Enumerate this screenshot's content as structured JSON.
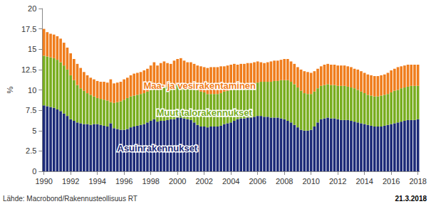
{
  "chart_data": {
    "type": "bar",
    "stacked": true,
    "grid": false,
    "ylabel": "%",
    "ylim": [
      0,
      20
    ],
    "yticks": [
      0,
      2.5,
      5,
      7.5,
      10,
      12.5,
      15,
      17.5,
      20
    ],
    "categories": [
      "1990",
      null,
      null,
      null,
      null,
      null,
      null,
      null,
      "1992",
      null,
      null,
      null,
      null,
      null,
      null,
      null,
      "1994",
      null,
      null,
      null,
      null,
      null,
      null,
      null,
      "1996",
      null,
      null,
      null,
      null,
      null,
      null,
      null,
      "1998",
      null,
      null,
      null,
      null,
      null,
      null,
      null,
      "2000",
      null,
      null,
      null,
      null,
      null,
      null,
      null,
      "2002",
      null,
      null,
      null,
      null,
      null,
      null,
      null,
      "2004",
      null,
      null,
      null,
      null,
      null,
      null,
      null,
      "2006",
      null,
      null,
      null,
      null,
      null,
      null,
      null,
      "2008",
      null,
      null,
      null,
      null,
      null,
      null,
      null,
      "2010",
      null,
      null,
      null,
      null,
      null,
      null,
      null,
      "2012",
      null,
      null,
      null,
      null,
      null,
      null,
      null,
      "2014",
      null,
      null,
      null,
      null,
      null,
      null,
      null,
      "2016",
      null,
      null,
      null,
      null,
      null,
      null,
      null,
      "2018"
    ],
    "series": [
      {
        "name": "Asuinrakennukset",
        "color": "#1c2a78",
        "values": [
          8.1,
          8.0,
          7.9,
          7.8,
          7.6,
          7.4,
          7.1,
          6.8,
          6.4,
          6.2,
          6.0,
          5.9,
          5.8,
          5.8,
          5.7,
          5.8,
          5.8,
          5.7,
          5.6,
          5.5,
          5.9,
          5.3,
          5.2,
          5.1,
          5.1,
          5.2,
          5.4,
          5.5,
          5.6,
          5.7,
          5.8,
          6.0,
          6.2,
          6.4,
          6.1,
          6.2,
          6.2,
          6.3,
          6.4,
          6.4,
          6.6,
          6.6,
          6.5,
          6.4,
          6.3,
          6.0,
          5.7,
          5.5,
          5.5,
          5.4,
          5.5,
          5.5,
          5.5,
          5.6,
          5.8,
          5.9,
          6.0,
          6.2,
          6.4,
          6.5,
          6.5,
          6.6,
          6.6,
          6.7,
          6.8,
          6.8,
          6.7,
          6.7,
          6.6,
          6.6,
          6.6,
          6.5,
          6.4,
          6.2,
          6.0,
          5.7,
          5.4,
          5.1,
          5.0,
          5.0,
          5.1,
          5.5,
          6.0,
          6.4,
          6.5,
          6.6,
          6.5,
          6.5,
          6.4,
          6.3,
          6.3,
          6.3,
          6.2,
          6.1,
          6.0,
          5.9,
          5.8,
          5.7,
          5.6,
          5.5,
          5.5,
          5.5,
          5.6,
          5.7,
          5.8,
          5.9,
          6.0,
          6.1,
          6.2,
          6.3,
          6.3,
          6.3,
          6.4
        ]
      },
      {
        "name": "Muut talorakennukset",
        "color": "#78ad1e",
        "values": [
          6.1,
          6.1,
          6.1,
          6.1,
          6.1,
          6.0,
          5.9,
          5.7,
          5.4,
          5.0,
          4.6,
          4.3,
          4.1,
          3.8,
          3.7,
          3.4,
          3.2,
          3.2,
          3.2,
          3.2,
          2.6,
          3.1,
          3.3,
          3.5,
          3.7,
          3.8,
          3.8,
          3.8,
          3.8,
          3.8,
          3.8,
          3.8,
          3.8,
          3.8,
          3.9,
          4.0,
          4.1,
          4.1,
          4.1,
          4.1,
          4.0,
          4.1,
          4.1,
          4.1,
          4.2,
          4.3,
          4.3,
          4.3,
          4.2,
          4.1,
          4.0,
          4.0,
          4.0,
          4.0,
          4.0,
          4.0,
          4.0,
          4.0,
          4.0,
          4.0,
          4.0,
          4.0,
          4.1,
          4.1,
          4.1,
          4.2,
          4.3,
          4.3,
          4.4,
          4.5,
          4.5,
          4.7,
          4.8,
          5.0,
          5.0,
          5.0,
          4.9,
          4.8,
          4.6,
          4.5,
          4.4,
          4.3,
          4.2,
          4.1,
          4.1,
          4.1,
          4.1,
          4.1,
          4.1,
          4.2,
          4.2,
          4.1,
          4.1,
          4.1,
          4.0,
          3.9,
          3.8,
          3.7,
          3.7,
          3.7,
          3.7,
          3.8,
          3.8,
          3.8,
          3.9,
          4.0,
          4.0,
          4.1,
          4.1,
          4.1,
          4.2,
          4.2,
          4.1
        ]
      },
      {
        "name": "Maa- ja vesirakentaminen",
        "color": "#f07d1c",
        "values": [
          3.3,
          3.0,
          2.9,
          2.9,
          2.9,
          2.9,
          2.8,
          2.7,
          2.7,
          2.6,
          2.6,
          2.5,
          2.3,
          2.2,
          2.1,
          2.1,
          2.1,
          2.1,
          2.2,
          2.2,
          2.8,
          2.4,
          2.4,
          2.4,
          2.5,
          2.5,
          2.6,
          2.7,
          2.7,
          2.7,
          2.8,
          2.8,
          3.0,
          3.2,
          3.0,
          3.1,
          3.2,
          2.9,
          2.7,
          3.1,
          3.2,
          3.2,
          3.0,
          2.9,
          2.9,
          2.9,
          3.0,
          3.1,
          3.1,
          3.2,
          3.3,
          3.3,
          3.3,
          3.3,
          3.1,
          3.1,
          3.1,
          3.0,
          2.7,
          2.7,
          2.7,
          2.7,
          2.6,
          2.6,
          2.6,
          2.4,
          2.3,
          2.4,
          2.5,
          2.5,
          2.5,
          2.5,
          2.6,
          2.6,
          2.5,
          2.5,
          2.5,
          2.6,
          2.7,
          2.7,
          2.6,
          2.5,
          2.4,
          2.4,
          2.5,
          2.5,
          2.5,
          2.5,
          2.5,
          2.5,
          2.5,
          2.5,
          2.5,
          2.4,
          2.5,
          2.5,
          2.5,
          2.5,
          2.5,
          2.5,
          2.5,
          2.5,
          2.5,
          2.6,
          2.7,
          2.7,
          2.8,
          2.7,
          2.7,
          2.7,
          2.6,
          2.6,
          2.6
        ]
      }
    ],
    "annotations": [
      "Lähde: Macrobond/Rakennusteollisuus RT",
      "21.3.2018"
    ]
  }
}
